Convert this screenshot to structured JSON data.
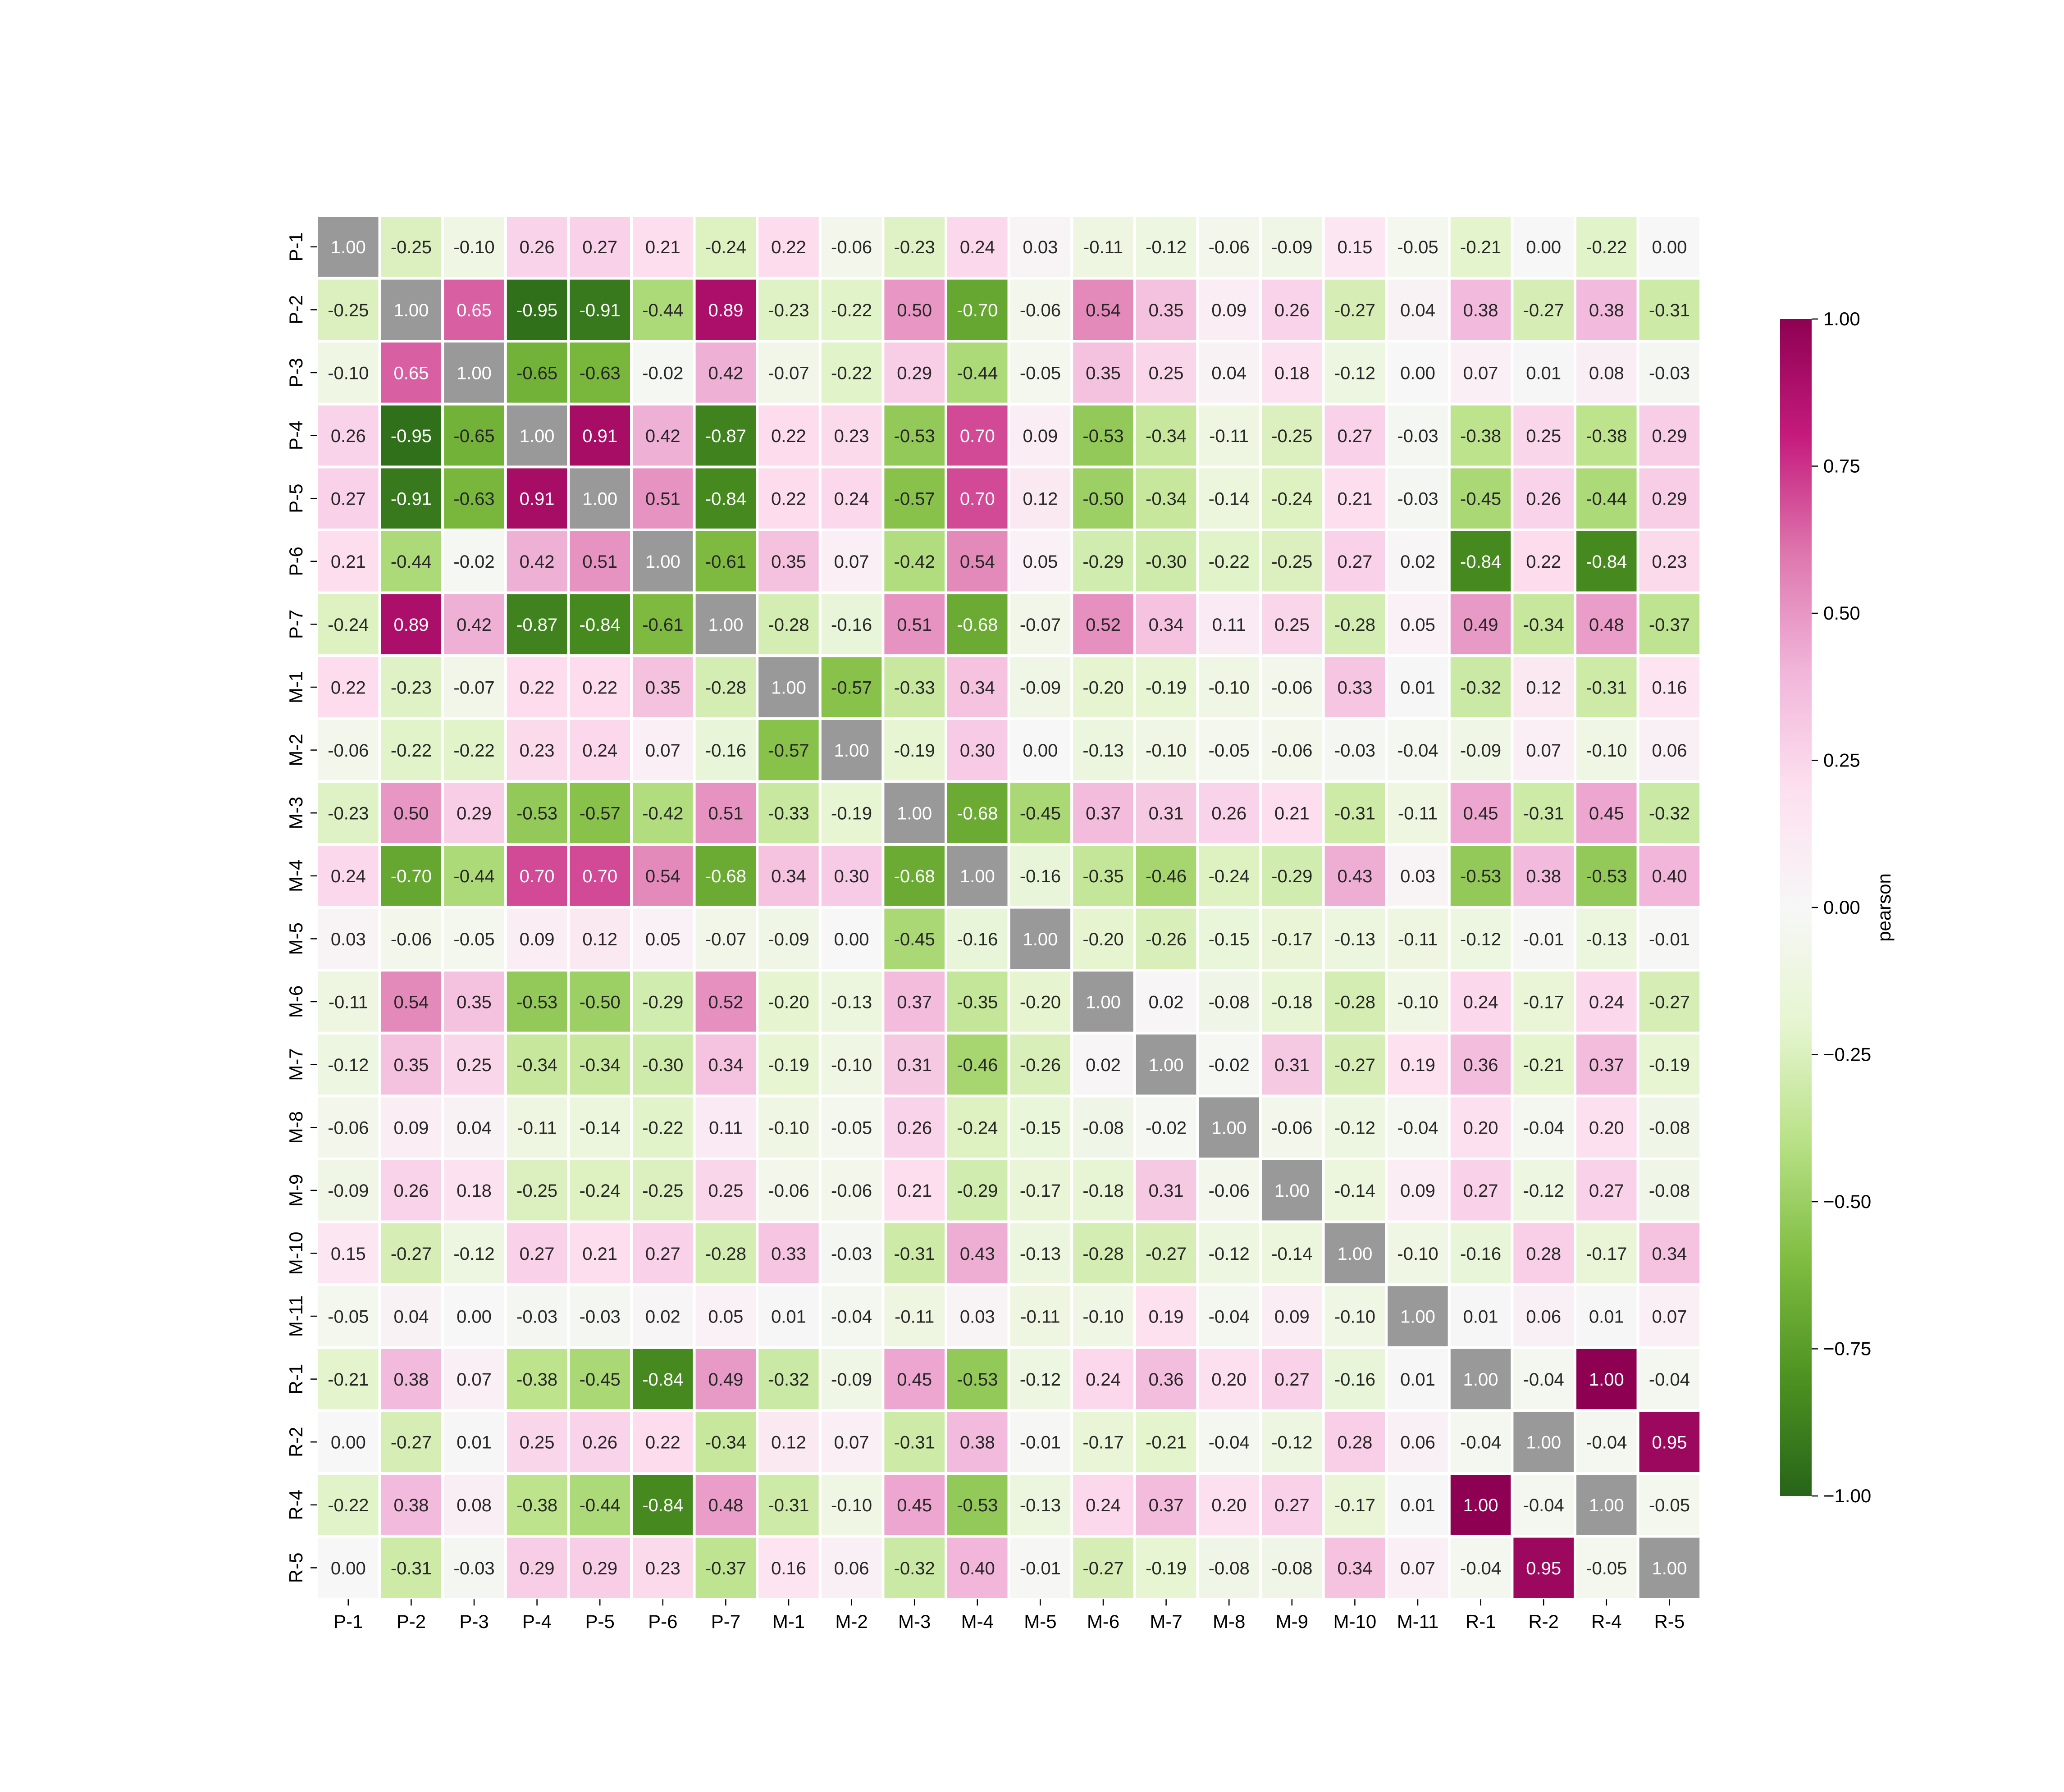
{
  "chart_data": {
    "type": "heatmap",
    "xlabels": [
      "P-1",
      "P-2",
      "P-3",
      "P-4",
      "P-5",
      "P-6",
      "P-7",
      "M-1",
      "M-2",
      "M-3",
      "M-4",
      "M-5",
      "M-6",
      "M-7",
      "M-8",
      "M-9",
      "M-10",
      "M-11",
      "R-1",
      "R-2",
      "R-4",
      "R-5"
    ],
    "ylabels": [
      "P-1",
      "P-2",
      "P-3",
      "P-4",
      "P-5",
      "P-6",
      "P-7",
      "M-1",
      "M-2",
      "M-3",
      "M-4",
      "M-5",
      "M-6",
      "M-7",
      "M-8",
      "M-9",
      "M-10",
      "M-11",
      "R-1",
      "R-2",
      "R-4",
      "R-5"
    ],
    "values": [
      [
        1.0,
        -0.25,
        -0.1,
        0.26,
        0.27,
        0.21,
        -0.24,
        0.22,
        -0.06,
        -0.23,
        0.24,
        0.03,
        -0.11,
        -0.12,
        -0.06,
        -0.09,
        0.15,
        -0.05,
        -0.21,
        0.0,
        -0.22,
        0.0
      ],
      [
        -0.25,
        1.0,
        0.65,
        -0.95,
        -0.91,
        -0.44,
        0.89,
        -0.23,
        -0.22,
        0.5,
        -0.7,
        -0.06,
        0.54,
        0.35,
        0.09,
        0.26,
        -0.27,
        0.04,
        0.38,
        -0.27,
        0.38,
        -0.31
      ],
      [
        -0.1,
        0.65,
        1.0,
        -0.65,
        -0.63,
        -0.02,
        0.42,
        -0.07,
        -0.22,
        0.29,
        -0.44,
        -0.05,
        0.35,
        0.25,
        0.04,
        0.18,
        -0.12,
        0.0,
        0.07,
        0.01,
        0.08,
        -0.03
      ],
      [
        0.26,
        -0.95,
        -0.65,
        1.0,
        0.91,
        0.42,
        -0.87,
        0.22,
        0.23,
        -0.53,
        0.7,
        0.09,
        -0.53,
        -0.34,
        -0.11,
        -0.25,
        0.27,
        -0.03,
        -0.38,
        0.25,
        -0.38,
        0.29
      ],
      [
        0.27,
        -0.91,
        -0.63,
        0.91,
        1.0,
        0.51,
        -0.84,
        0.22,
        0.24,
        -0.57,
        0.7,
        0.12,
        -0.5,
        -0.34,
        -0.14,
        -0.24,
        0.21,
        -0.03,
        -0.45,
        0.26,
        -0.44,
        0.29
      ],
      [
        0.21,
        -0.44,
        -0.02,
        0.42,
        0.51,
        1.0,
        -0.61,
        0.35,
        0.07,
        -0.42,
        0.54,
        0.05,
        -0.29,
        -0.3,
        -0.22,
        -0.25,
        0.27,
        0.02,
        -0.84,
        0.22,
        -0.84,
        0.23
      ],
      [
        -0.24,
        0.89,
        0.42,
        -0.87,
        -0.84,
        -0.61,
        1.0,
        -0.28,
        -0.16,
        0.51,
        -0.68,
        -0.07,
        0.52,
        0.34,
        0.11,
        0.25,
        -0.28,
        0.05,
        0.49,
        -0.34,
        0.48,
        -0.37
      ],
      [
        0.22,
        -0.23,
        -0.07,
        0.22,
        0.22,
        0.35,
        -0.28,
        1.0,
        -0.57,
        -0.33,
        0.34,
        -0.09,
        -0.2,
        -0.19,
        -0.1,
        -0.06,
        0.33,
        0.01,
        -0.32,
        0.12,
        -0.31,
        0.16
      ],
      [
        -0.06,
        -0.22,
        -0.22,
        0.23,
        0.24,
        0.07,
        -0.16,
        -0.57,
        1.0,
        -0.19,
        0.3,
        0.0,
        -0.13,
        -0.1,
        -0.05,
        -0.06,
        -0.03,
        -0.04,
        -0.09,
        0.07,
        -0.1,
        0.06
      ],
      [
        -0.23,
        0.5,
        0.29,
        -0.53,
        -0.57,
        -0.42,
        0.51,
        -0.33,
        -0.19,
        1.0,
        -0.68,
        -0.45,
        0.37,
        0.31,
        0.26,
        0.21,
        -0.31,
        -0.11,
        0.45,
        -0.31,
        0.45,
        -0.32
      ],
      [
        0.24,
        -0.7,
        -0.44,
        0.7,
        0.7,
        0.54,
        -0.68,
        0.34,
        0.3,
        -0.68,
        1.0,
        -0.16,
        -0.35,
        -0.46,
        -0.24,
        -0.29,
        0.43,
        0.03,
        -0.53,
        0.38,
        -0.53,
        0.4
      ],
      [
        0.03,
        -0.06,
        -0.05,
        0.09,
        0.12,
        0.05,
        -0.07,
        -0.09,
        0.0,
        -0.45,
        -0.16,
        1.0,
        -0.2,
        -0.26,
        -0.15,
        -0.17,
        -0.13,
        -0.11,
        -0.12,
        -0.01,
        -0.13,
        -0.01
      ],
      [
        -0.11,
        0.54,
        0.35,
        -0.53,
        -0.5,
        -0.29,
        0.52,
        -0.2,
        -0.13,
        0.37,
        -0.35,
        -0.2,
        1.0,
        0.02,
        -0.08,
        -0.18,
        -0.28,
        -0.1,
        0.24,
        -0.17,
        0.24,
        -0.27
      ],
      [
        -0.12,
        0.35,
        0.25,
        -0.34,
        -0.34,
        -0.3,
        0.34,
        -0.19,
        -0.1,
        0.31,
        -0.46,
        -0.26,
        0.02,
        1.0,
        -0.02,
        0.31,
        -0.27,
        0.19,
        0.36,
        -0.21,
        0.37,
        -0.19
      ],
      [
        -0.06,
        0.09,
        0.04,
        -0.11,
        -0.14,
        -0.22,
        0.11,
        -0.1,
        -0.05,
        0.26,
        -0.24,
        -0.15,
        -0.08,
        -0.02,
        1.0,
        -0.06,
        -0.12,
        -0.04,
        0.2,
        -0.04,
        0.2,
        -0.08
      ],
      [
        -0.09,
        0.26,
        0.18,
        -0.25,
        -0.24,
        -0.25,
        0.25,
        -0.06,
        -0.06,
        0.21,
        -0.29,
        -0.17,
        -0.18,
        0.31,
        -0.06,
        1.0,
        -0.14,
        0.09,
        0.27,
        -0.12,
        0.27,
        -0.08
      ],
      [
        0.15,
        -0.27,
        -0.12,
        0.27,
        0.21,
        0.27,
        -0.28,
        0.33,
        -0.03,
        -0.31,
        0.43,
        -0.13,
        -0.28,
        -0.27,
        -0.12,
        -0.14,
        1.0,
        -0.1,
        -0.16,
        0.28,
        -0.17,
        0.34
      ],
      [
        -0.05,
        0.04,
        0.0,
        -0.03,
        -0.03,
        0.02,
        0.05,
        0.01,
        -0.04,
        -0.11,
        0.03,
        -0.11,
        -0.1,
        0.19,
        -0.04,
        0.09,
        -0.1,
        1.0,
        0.01,
        0.06,
        0.01,
        0.07
      ],
      [
        -0.21,
        0.38,
        0.07,
        -0.38,
        -0.45,
        -0.84,
        0.49,
        -0.32,
        -0.09,
        0.45,
        -0.53,
        -0.12,
        0.24,
        0.36,
        0.2,
        0.27,
        -0.16,
        0.01,
        1.0,
        -0.04,
        1.0,
        -0.04
      ],
      [
        0.0,
        -0.27,
        0.01,
        0.25,
        0.26,
        0.22,
        -0.34,
        0.12,
        0.07,
        -0.31,
        0.38,
        -0.01,
        -0.17,
        -0.21,
        -0.04,
        -0.12,
        0.28,
        0.06,
        -0.04,
        1.0,
        -0.04,
        0.95
      ],
      [
        -0.22,
        0.38,
        0.08,
        -0.38,
        -0.44,
        -0.84,
        0.48,
        -0.31,
        -0.1,
        0.45,
        -0.53,
        -0.13,
        0.24,
        0.37,
        0.2,
        0.27,
        -0.17,
        0.01,
        1.0,
        -0.04,
        1.0,
        -0.05
      ],
      [
        0.0,
        -0.31,
        -0.03,
        0.29,
        0.29,
        0.23,
        -0.37,
        0.16,
        0.06,
        -0.32,
        0.4,
        -0.01,
        -0.27,
        -0.19,
        -0.08,
        -0.08,
        0.34,
        0.07,
        -0.04,
        0.95,
        -0.05,
        1.0
      ]
    ],
    "value_format": "0.00",
    "diagonal_color": "#999999",
    "colormap": "PiYG_r",
    "colormap_stops": [
      "#276419",
      "#4d9221",
      "#7fbc41",
      "#b8e186",
      "#e6f5d0",
      "#f7f7f7",
      "#fde0ef",
      "#f1b6da",
      "#de77ae",
      "#c51b7d",
      "#8e0152"
    ],
    "vmin": -1.0,
    "vmax": 1.0,
    "colorbar": {
      "label": "pearson",
      "ticks": [
        "1.00",
        "0.75",
        "0.50",
        "0.25",
        "0.00",
        "−0.25",
        "−0.50",
        "−0.75",
        "−1.00"
      ],
      "tick_values": [
        1.0,
        0.75,
        0.5,
        0.25,
        0.0,
        -0.25,
        -0.5,
        -0.75,
        -1.0
      ]
    },
    "title": "",
    "xlabel": "",
    "ylabel": ""
  }
}
